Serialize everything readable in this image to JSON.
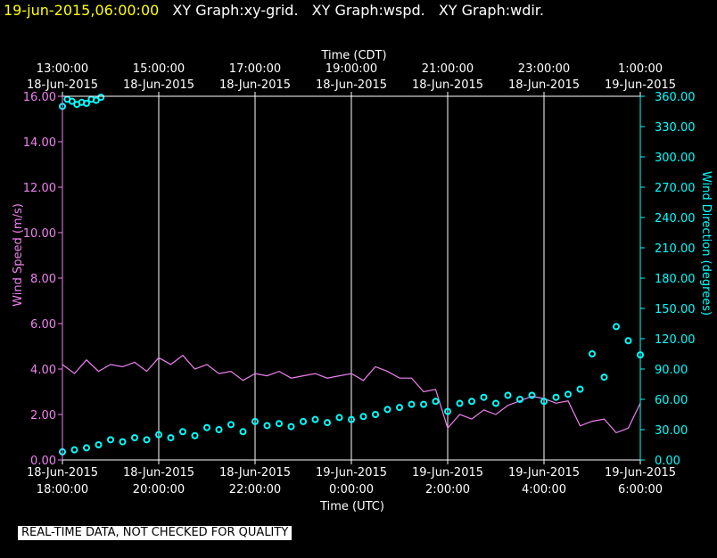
{
  "header": {
    "datetime": "19-jun-2015,06:00:00",
    "graphs": [
      "XY Graph:xy-grid.",
      "XY Graph:wspd.",
      "XY Graph:wdir."
    ]
  },
  "disclaimer": "REAL-TIME DATA, NOT CHECKED FOR QUALITY",
  "colors": {
    "wspd": "#ee82ee",
    "wdir": "#00ffff",
    "axis": "#ffffff",
    "background": "#000000"
  },
  "chart_data": {
    "type": "line",
    "x_bottom_label": "Time (UTC)",
    "x_top_label": "Time (CDT)",
    "x_range_utc_hours": [
      18,
      30
    ],
    "bottom_ticks": [
      {
        "hour": 18,
        "l1": "18-Jun-2015",
        "l2": "18:00:00"
      },
      {
        "hour": 20,
        "l1": "18-Jun-2015",
        "l2": "20:00:00"
      },
      {
        "hour": 22,
        "l1": "18-Jun-2015",
        "l2": "22:00:00"
      },
      {
        "hour": 24,
        "l1": "19-Jun-2015",
        "l2": "0:00:00"
      },
      {
        "hour": 26,
        "l1": "19-Jun-2015",
        "l2": "2:00:00"
      },
      {
        "hour": 28,
        "l1": "19-Jun-2015",
        "l2": "4:00:00"
      },
      {
        "hour": 30,
        "l1": "19-Jun-2015",
        "l2": "6:00:00"
      }
    ],
    "top_ticks": [
      {
        "hour": 18,
        "l1": "13:00:00",
        "l2": "18-Jun-2015"
      },
      {
        "hour": 20,
        "l1": "15:00:00",
        "l2": "18-Jun-2015"
      },
      {
        "hour": 22,
        "l1": "17:00:00",
        "l2": "18-Jun-2015"
      },
      {
        "hour": 24,
        "l1": "19:00:00",
        "l2": "18-Jun-2015"
      },
      {
        "hour": 26,
        "l1": "21:00:00",
        "l2": "18-Jun-2015"
      },
      {
        "hour": 28,
        "l1": "23:00:00",
        "l2": "18-Jun-2015"
      },
      {
        "hour": 30,
        "l1": "1:00:00",
        "l2": "19-Jun-2015"
      }
    ],
    "y_left": {
      "label": "Wind Speed (m/s)",
      "range": [
        0,
        16
      ],
      "ticks": [
        "0.00",
        "2.00",
        "4.00",
        "6.00",
        "8.00",
        "10.00",
        "12.00",
        "14.00",
        "16.00"
      ]
    },
    "y_right": {
      "label": "Wind Direction (degrees)",
      "range": [
        0,
        360
      ],
      "ticks": [
        "0.00",
        "30.00",
        "60.00",
        "90.00",
        "120.00",
        "150.00",
        "180.00",
        "210.00",
        "240.00",
        "270.00",
        "300.00",
        "330.00",
        "360.00"
      ]
    },
    "grid": "vertical",
    "series": [
      {
        "name": "Wind Speed (m/s)",
        "type": "line",
        "axis": "left",
        "x": [
          18.0,
          18.25,
          18.5,
          18.75,
          19.0,
          19.25,
          19.5,
          19.75,
          20.0,
          20.25,
          20.5,
          20.75,
          21.0,
          21.25,
          21.5,
          21.75,
          22.0,
          22.25,
          22.5,
          22.75,
          23.0,
          23.25,
          23.5,
          23.75,
          24.0,
          24.25,
          24.5,
          24.75,
          25.0,
          25.25,
          25.5,
          25.75,
          26.0,
          26.25,
          26.5,
          26.75,
          27.0,
          27.25,
          27.5,
          27.75,
          28.0,
          28.25,
          28.5,
          28.75,
          29.0,
          29.25,
          29.5,
          29.75,
          30.0
        ],
        "y": [
          4.2,
          3.8,
          4.4,
          3.9,
          4.2,
          4.1,
          4.3,
          3.9,
          4.5,
          4.2,
          4.6,
          4.0,
          4.2,
          3.8,
          3.9,
          3.5,
          3.8,
          3.7,
          3.9,
          3.6,
          3.7,
          3.8,
          3.6,
          3.7,
          3.8,
          3.5,
          4.1,
          3.9,
          3.6,
          3.6,
          3.0,
          3.1,
          1.4,
          2.0,
          1.8,
          2.2,
          2.0,
          2.4,
          2.6,
          2.8,
          2.7,
          2.5,
          2.6,
          1.5,
          1.7,
          1.8,
          1.2,
          1.4,
          2.5
        ]
      },
      {
        "name": "Wind Direction (degrees)",
        "type": "scatter",
        "axis": "right",
        "x": [
          18.0,
          18.25,
          18.5,
          18.75,
          19.0,
          19.25,
          19.5,
          19.75,
          20.0,
          20.25,
          20.5,
          20.75,
          21.0,
          21.25,
          21.5,
          21.75,
          22.0,
          22.25,
          22.5,
          22.75,
          23.0,
          23.25,
          23.5,
          23.75,
          24.0,
          24.25,
          24.5,
          24.75,
          25.0,
          25.25,
          25.5,
          25.75,
          26.0,
          26.25,
          26.5,
          26.75,
          27.0,
          27.25,
          27.5,
          27.75,
          28.0,
          28.25,
          28.5,
          28.75,
          29.0,
          29.25,
          29.5,
          29.75,
          30.0
        ],
        "y": [
          8,
          10,
          12,
          15,
          20,
          18,
          22,
          20,
          25,
          22,
          28,
          24,
          32,
          30,
          35,
          28,
          38,
          34,
          36,
          33,
          38,
          40,
          37,
          42,
          40,
          43,
          45,
          50,
          52,
          55,
          55,
          58,
          48,
          56,
          58,
          62,
          56,
          64,
          60,
          64,
          58,
          62,
          65,
          70,
          105,
          82,
          132,
          118,
          104
        ]
      },
      {
        "name": "",
        "type": "scatter",
        "axis": "right",
        "x": [
          18.0,
          18.1,
          18.2,
          18.3,
          18.4,
          18.5,
          18.6,
          18.7,
          18.8
        ],
        "y": [
          350,
          357,
          355,
          352,
          354,
          353,
          357,
          356,
          359
        ]
      }
    ]
  }
}
